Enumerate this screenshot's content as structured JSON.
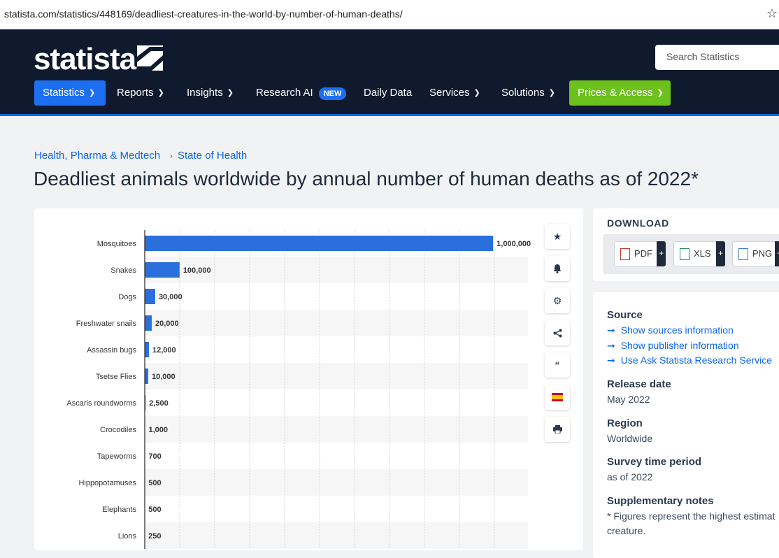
{
  "browser": {
    "url": "statista.com/statistics/448169/deadliest-creatures-in-the-world-by-number-of-human-deaths/",
    "star_icon": "star-outline-icon"
  },
  "header": {
    "logo_text": "statista",
    "search_placeholder": "Search Statistics",
    "nav": {
      "statistics": "Statistics",
      "reports": "Reports",
      "insights": "Insights",
      "research_ai": "Research AI",
      "new_badge": "NEW",
      "daily_data": "Daily Data",
      "services": "Services",
      "solutions": "Solutions",
      "prices": "Prices & Access"
    },
    "colors": {
      "navy": "#0f1a2e",
      "accent_blue": "#0c66e4",
      "green": "#6cc11c"
    }
  },
  "breadcrumb": [
    "Health, Pharma & Medtech",
    "State of Health"
  ],
  "page_title": "Deadliest animals worldwide by annual number of human deaths as of 2022*",
  "chart_data": {
    "type": "bar",
    "orientation": "horizontal",
    "categories": [
      "Mosquitoes",
      "Snakes",
      "Dogs",
      "Freshwater snails",
      "Assassin bugs",
      "Tsetse Flies",
      "Ascaris roundworms",
      "Crocodiles",
      "Tapeworms",
      "Hippopotamuses",
      "Elephants",
      "Lions"
    ],
    "values": [
      1000000,
      100000,
      30000,
      20000,
      12000,
      10000,
      2500,
      1000,
      700,
      500,
      500,
      250
    ],
    "labels": [
      "1,000,000",
      "100,000",
      "30,000",
      "20,000",
      "12,000",
      "10,000",
      "2,500",
      "1,000",
      "700",
      "500",
      "500",
      "250"
    ],
    "xlim": [
      0,
      1100000
    ],
    "grid": true,
    "bar_color": "#2a6fdb"
  },
  "tools": [
    "star-icon",
    "bell-icon",
    "gear-icon",
    "share-icon",
    "quote-icon",
    "spain-flag-icon",
    "print-icon"
  ],
  "download": {
    "title": "DOWNLOAD",
    "buttons": [
      "PDF",
      "XLS",
      "PNG"
    ],
    "plus": "+"
  },
  "info": {
    "source_title": "Source",
    "links": [
      "Show sources information",
      "Show publisher information",
      "Use Ask Statista Research Service"
    ],
    "link_arrow": "➞",
    "release_title": "Release date",
    "release_value": "May 2022",
    "region_title": "Region",
    "region_value": "Worldwide",
    "survey_title": "Survey time period",
    "survey_value": "as of 2022",
    "notes_title": "Supplementary notes",
    "notes_line1": "* Figures represent the highest estimat",
    "notes_line2": "creature."
  }
}
